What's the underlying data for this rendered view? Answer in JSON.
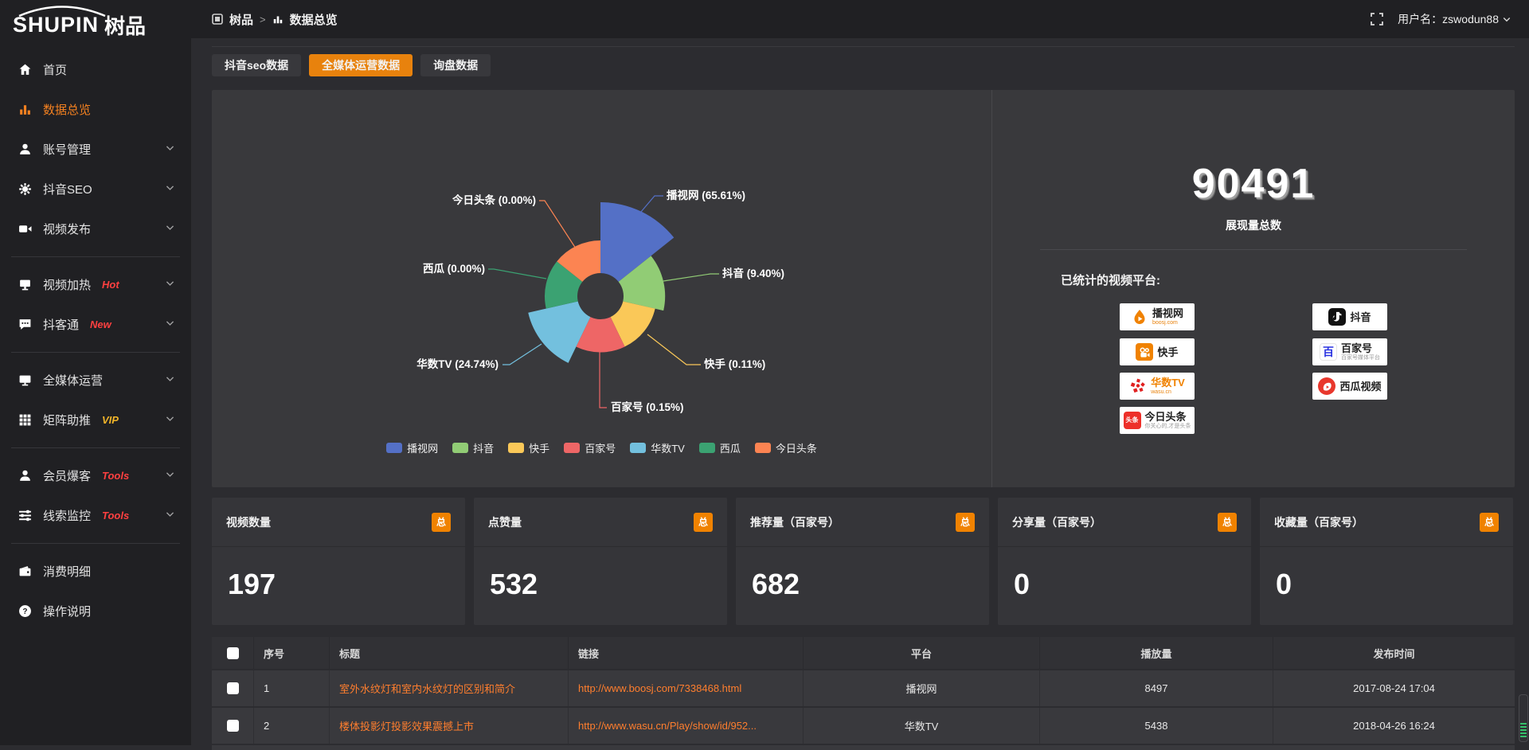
{
  "topbar": {
    "logo_en": "SHUPIN",
    "logo_cn": "树品",
    "breadcrumb_root": "树品",
    "breadcrumb_sep": ">",
    "breadcrumb_current": "数据总览",
    "username": "用户名：zswodun88"
  },
  "sidebar": {
    "items": [
      {
        "label": "首页",
        "icon": "home"
      },
      {
        "label": "数据总览",
        "icon": "chart",
        "active": true
      },
      {
        "label": "账号管理",
        "icon": "user",
        "expandable": true
      },
      {
        "label": "抖音SEO",
        "icon": "gear",
        "expandable": true
      },
      {
        "label": "视频发布",
        "icon": "video",
        "expandable": true
      },
      {
        "divider": true
      },
      {
        "label": "视频加热",
        "icon": "heat",
        "badge": "Hot",
        "badge_color": "#ff4040",
        "expandable": true
      },
      {
        "label": "抖客通",
        "icon": "chat",
        "badge": "New",
        "badge_color": "#ff4040",
        "expandable": true
      },
      {
        "divider": true
      },
      {
        "label": "全媒体运营",
        "icon": "monitor",
        "expandable": true
      },
      {
        "label": "矩阵助推",
        "icon": "grid",
        "badge": "VIP",
        "badge_color": "#f0b429",
        "expandable": true
      },
      {
        "divider": true
      },
      {
        "label": "会员爆客",
        "icon": "user",
        "badge": "Tools",
        "badge_color": "#ff4040",
        "expandable": true
      },
      {
        "label": "线索监控",
        "icon": "sliders",
        "badge": "Tools",
        "badge_color": "#ff4040",
        "expandable": true
      },
      {
        "divider": true
      },
      {
        "label": "消费明细",
        "icon": "wallet"
      },
      {
        "label": "操作说明",
        "icon": "question"
      }
    ]
  },
  "tabs": [
    {
      "label": "抖音seo数据",
      "active": false
    },
    {
      "label": "全媒体运营数据",
      "active": true
    },
    {
      "label": "询盘数据",
      "active": false
    }
  ],
  "chart_data": {
    "type": "pie",
    "variant": "nightingale-rose-donut",
    "series": [
      {
        "name": "播视网",
        "value": 65.61
      },
      {
        "name": "抖音",
        "value": 9.4
      },
      {
        "name": "快手",
        "value": 0.11
      },
      {
        "name": "百家号",
        "value": 0.15
      },
      {
        "name": "华数TV",
        "value": 24.74
      },
      {
        "name": "西瓜",
        "value": 0.0
      },
      {
        "name": "今日头条",
        "value": 0.0
      }
    ],
    "unit": "%",
    "labels": [
      "播视网 (65.61%)",
      "抖音 (9.40%)",
      "快手 (0.11%)",
      "百家号 (0.15%)",
      "华数TV (24.74%)",
      "西瓜 (0.00%)",
      "今日头条 (0.00%)"
    ],
    "legend": [
      "播视网",
      "抖音",
      "快手",
      "百家号",
      "华数TV",
      "西瓜",
      "今日头条"
    ],
    "colors": [
      "#5470c6",
      "#91cc75",
      "#fac858",
      "#ee6666",
      "#73c0de",
      "#3ba272",
      "#fc8452"
    ],
    "legend_position": "bottom"
  },
  "summary": {
    "total": "90491",
    "total_label": "展现量总数",
    "platforms_label": "已统计的视频平台:",
    "platforms": [
      {
        "name": "播视网",
        "sub": "boosj.com",
        "type": "boosj",
        "col": 0,
        "row": 0
      },
      {
        "name": "抖音",
        "sub": "",
        "type": "douyin",
        "col": 1,
        "row": 0
      },
      {
        "name": "快手",
        "sub": "",
        "type": "kuaishou",
        "col": 0,
        "row": 1
      },
      {
        "name": "百家号",
        "sub": "百家号媒体平台",
        "type": "baijiahao",
        "col": 1,
        "row": 1
      },
      {
        "name": "华数TV",
        "sub": "wasu.cn",
        "type": "wasu",
        "col": 0,
        "row": 2
      },
      {
        "name": "西瓜视频",
        "sub": "",
        "type": "xigua",
        "col": 1,
        "row": 2
      },
      {
        "name": "今日头条",
        "sub": "你关心的,才是头条",
        "type": "toutiao",
        "col": 0,
        "row": 3
      }
    ]
  },
  "stat_cards": [
    {
      "title": "视频数量",
      "badge": "总",
      "value": "197"
    },
    {
      "title": "点赞量",
      "badge": "总",
      "value": "532"
    },
    {
      "title": "推荐量（百家号）",
      "badge": "总",
      "value": "682"
    },
    {
      "title": "分享量（百家号）",
      "badge": "总",
      "value": "0"
    },
    {
      "title": "收藏量（百家号）",
      "badge": "总",
      "value": "0"
    }
  ],
  "table": {
    "headers": [
      "序号",
      "标题",
      "链接",
      "平台",
      "播放量",
      "发布时间"
    ],
    "rows": [
      {
        "index": "1",
        "title": "室外水纹灯和室内水纹灯的区别和简介",
        "link": "http://www.boosj.com/7338468.html",
        "platform": "播视网",
        "plays": "8497",
        "time": "2017-08-24 17:04"
      },
      {
        "index": "2",
        "title": "楼体投影灯投影效果震撼上市",
        "link": "http://www.wasu.cn/Play/show/id/952...",
        "platform": "华数TV",
        "plays": "5438",
        "time": "2018-04-26 16:24"
      }
    ]
  }
}
